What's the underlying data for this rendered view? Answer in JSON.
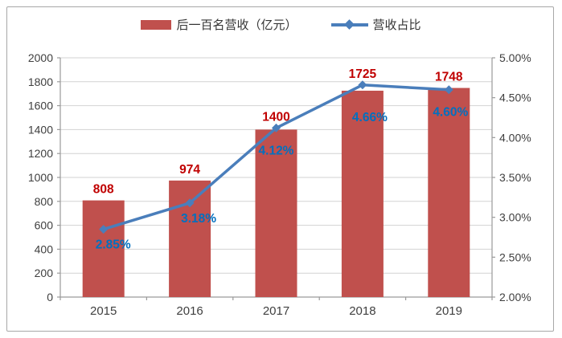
{
  "chart_data": {
    "type": "bar+line",
    "categories": [
      "2015",
      "2016",
      "2017",
      "2018",
      "2019"
    ],
    "series": [
      {
        "name": "后一百名营收（亿元）",
        "type": "bar",
        "axis": "left",
        "values": [
          808,
          974,
          1400,
          1725,
          1748
        ],
        "labels": [
          "808",
          "974",
          "1400",
          "1725",
          "1748"
        ]
      },
      {
        "name": "营收占比",
        "type": "line",
        "axis": "right",
        "values": [
          2.85,
          3.18,
          4.12,
          4.66,
          4.6
        ],
        "labels": [
          "2.85%",
          "3.18%",
          "4.12%",
          "4.66%",
          "4.60%"
        ]
      }
    ],
    "title": "",
    "xlabel": "",
    "ylabel": "",
    "left_axis": {
      "min": 0,
      "max": 2000,
      "step": 200,
      "ticks": [
        "0",
        "200",
        "400",
        "600",
        "800",
        "1000",
        "1200",
        "1400",
        "1600",
        "1800",
        "2000"
      ]
    },
    "right_axis": {
      "min": 2.0,
      "max": 5.0,
      "step": 0.5,
      "ticks": [
        "2.00%",
        "2.50%",
        "3.00%",
        "3.50%",
        "4.00%",
        "4.50%",
        "5.00%"
      ]
    },
    "grid": true,
    "legend_position": "top"
  },
  "colors": {
    "bar_fill": "#c0504d",
    "bar_value_label": "#c00000",
    "line": "#4a7ebb",
    "marker": "#4a7ebb",
    "pct_label": "#0070c0",
    "gridline": "#d2d2d2",
    "axis_line": "#9a9a9a",
    "tick_label": "#3f3f3f",
    "frame_border": "#a8a8a8",
    "background": "#ffffff"
  }
}
